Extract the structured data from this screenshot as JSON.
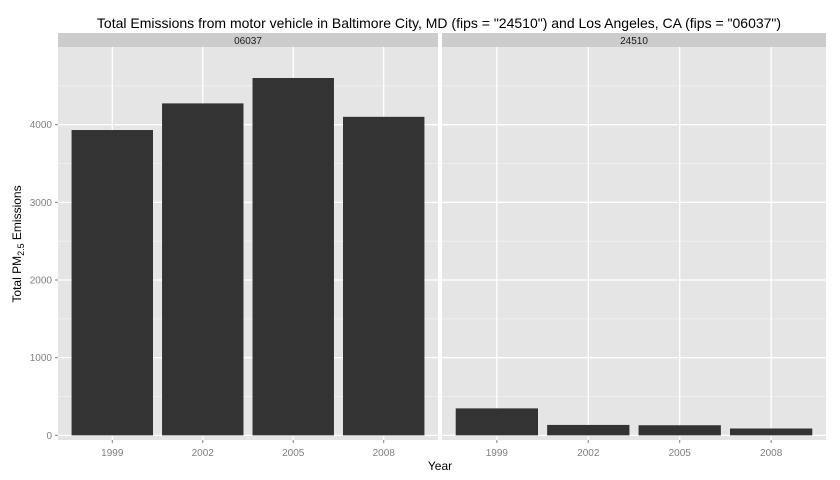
{
  "chart_data": {
    "type": "bar",
    "title": "Total Emissions from motor vehicle in Baltimore City, MD (fips = \"24510\") and Los Angeles, CA (fips = \"06037\")",
    "xlabel": "Year",
    "ylabel": {
      "prefix": "Total PM",
      "subscript": "2.5",
      "suffix": " Emissions"
    },
    "categories": [
      "1999",
      "2002",
      "2005",
      "2008"
    ],
    "ylim": [
      -60,
      5000
    ],
    "yticks": [
      0,
      1000,
      2000,
      3000,
      4000
    ],
    "grid": true,
    "colors": {
      "bar": "#333333",
      "panel_bg": "#e5e5e5",
      "strip_bg": "#cccccc",
      "grid_major": "#ffffff",
      "grid_minor": "#f2f2f2"
    },
    "facets": [
      {
        "label": "06037",
        "values": [
          3931,
          4274,
          4601,
          4101
        ]
      },
      {
        "label": "24510",
        "values": [
          347,
          134,
          130,
          88
        ]
      }
    ]
  }
}
